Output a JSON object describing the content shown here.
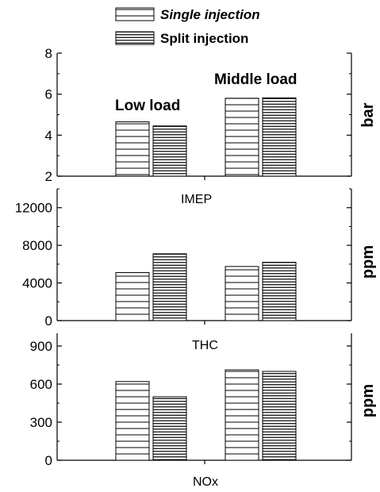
{
  "legend": {
    "single_label": "Single injection",
    "split_label": "Split injection"
  },
  "chart_data": [
    {
      "type": "bar",
      "categories": [
        "Low load",
        "Middle load"
      ],
      "series": [
        {
          "name": "Single injection",
          "values": [
            4.65,
            5.8
          ]
        },
        {
          "name": "Split injection",
          "values": [
            4.45,
            5.82
          ]
        }
      ],
      "ylim": [
        2,
        8
      ],
      "yticks": [
        "2",
        "4",
        "6",
        "8"
      ],
      "ylabel": "bar",
      "xlabel": "IMEP",
      "group_labels": [
        "Low load",
        "Middle load"
      ]
    },
    {
      "type": "bar",
      "categories": [
        "Low load",
        "Middle load"
      ],
      "series": [
        {
          "name": "Single injection",
          "values": [
            5100,
            5750
          ]
        },
        {
          "name": "Split injection",
          "values": [
            7100,
            6200
          ]
        }
      ],
      "ylim": [
        0,
        14000
      ],
      "yticks": [
        "0",
        "4000",
        "8000",
        "12000"
      ],
      "ylabel": "ppm",
      "xlabel": "THC"
    },
    {
      "type": "bar",
      "categories": [
        "Low load",
        "Middle load"
      ],
      "series": [
        {
          "name": "Single injection",
          "values": [
            620,
            712
          ]
        },
        {
          "name": "Split injection",
          "values": [
            500,
            700
          ]
        }
      ],
      "ylim": [
        0,
        1000
      ],
      "yticks": [
        "0",
        "300",
        "600",
        "900"
      ],
      "ylabel": "ppm",
      "xlabel": "NOx"
    }
  ]
}
